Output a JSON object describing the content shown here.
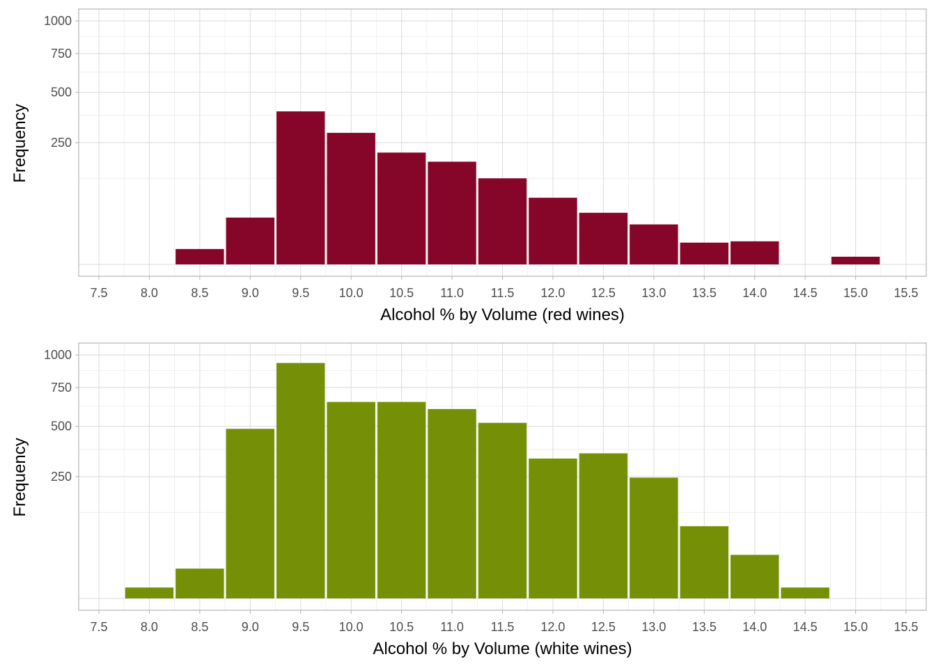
{
  "chart_data": [
    {
      "type": "bar",
      "ylabel": "Frequency",
      "xlabel": "Alcohol % by Volume (red wines)",
      "y_scale": "sqrt",
      "y_ticks": [
        250,
        500,
        750,
        1000
      ],
      "y_tick_labels": [
        "250",
        "500",
        "750",
        "1000"
      ],
      "ylim": [
        0,
        1100
      ],
      "x_ticks": [
        7.5,
        8.0,
        8.5,
        9.0,
        9.5,
        10.0,
        10.5,
        11.0,
        11.5,
        12.0,
        12.5,
        13.0,
        13.5,
        14.0,
        14.5,
        15.0,
        15.5
      ],
      "x_tick_labels": [
        "7.5",
        "8.0",
        "8.5",
        "9.0",
        "9.5",
        "10.0",
        "10.5",
        "11.0",
        "11.5",
        "12.0",
        "12.5",
        "13.0",
        "13.5",
        "14.0",
        "14.5",
        "15.0",
        "15.5"
      ],
      "xlim": [
        7.3,
        15.7
      ],
      "bin_width": 0.5,
      "bar_color": "#86062A",
      "grid": true,
      "bars": [
        {
          "x": 8.5,
          "value": 4
        },
        {
          "x": 9.0,
          "value": 37
        },
        {
          "x": 9.5,
          "value": 395
        },
        {
          "x": 10.0,
          "value": 292
        },
        {
          "x": 10.5,
          "value": 211
        },
        {
          "x": 11.0,
          "value": 178
        },
        {
          "x": 11.5,
          "value": 125
        },
        {
          "x": 12.0,
          "value": 75
        },
        {
          "x": 12.5,
          "value": 45
        },
        {
          "x": 13.0,
          "value": 27
        },
        {
          "x": 13.5,
          "value": 8
        },
        {
          "x": 14.0,
          "value": 9
        },
        {
          "x": 15.0,
          "value": 1
        }
      ]
    },
    {
      "type": "bar",
      "ylabel": "Frequency",
      "xlabel": "Alcohol % by Volume (white wines)",
      "y_scale": "sqrt",
      "y_ticks": [
        250,
        500,
        750,
        1000
      ],
      "y_tick_labels": [
        "250",
        "500",
        "750",
        "1000"
      ],
      "ylim": [
        0,
        1100
      ],
      "x_ticks": [
        7.5,
        8.0,
        8.5,
        9.0,
        9.5,
        10.0,
        10.5,
        11.0,
        11.5,
        12.0,
        12.5,
        13.0,
        13.5,
        14.0,
        14.5,
        15.0,
        15.5
      ],
      "x_tick_labels": [
        "7.5",
        "8.0",
        "8.5",
        "9.0",
        "9.5",
        "10.0",
        "10.5",
        "11.0",
        "11.5",
        "12.0",
        "12.5",
        "13.0",
        "13.5",
        "14.0",
        "14.5",
        "15.0",
        "15.5"
      ],
      "xlim": [
        7.3,
        15.7
      ],
      "bin_width": 0.5,
      "bar_color": "#758F06",
      "grid": true,
      "bars": [
        {
          "x": 8.0,
          "value": 2
        },
        {
          "x": 8.5,
          "value": 15
        },
        {
          "x": 9.0,
          "value": 485
        },
        {
          "x": 9.5,
          "value": 935
        },
        {
          "x": 10.0,
          "value": 651
        },
        {
          "x": 10.5,
          "value": 651
        },
        {
          "x": 11.0,
          "value": 605
        },
        {
          "x": 11.5,
          "value": 520
        },
        {
          "x": 12.0,
          "value": 330
        },
        {
          "x": 12.5,
          "value": 355
        },
        {
          "x": 13.0,
          "value": 246
        },
        {
          "x": 13.5,
          "value": 88
        },
        {
          "x": 14.0,
          "value": 32
        },
        {
          "x": 14.5,
          "value": 2
        }
      ]
    }
  ]
}
